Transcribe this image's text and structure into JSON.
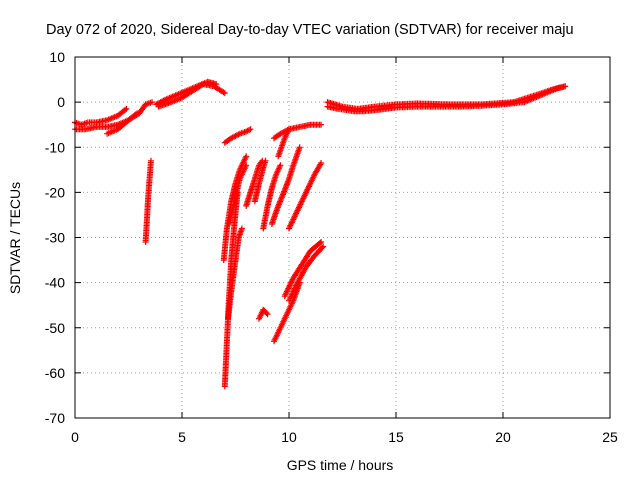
{
  "chart_data": {
    "type": "scatter",
    "title": "Day 072 of 2020, Sidereal Day-to-day VTEC variation (SDTVAR) for receiver maju",
    "xlabel": "GPS time / hours",
    "ylabel": "SDTVAR / TECUs",
    "xlim": [
      0,
      25
    ],
    "ylim": [
      -70,
      10
    ],
    "xticks": [
      0,
      5,
      10,
      15,
      20,
      25
    ],
    "yticks": [
      10,
      0,
      -10,
      -20,
      -30,
      -40,
      -50,
      -60,
      -70
    ],
    "grid": true,
    "marker": "+",
    "series": [
      {
        "name": "SDTVAR",
        "color": "#ff0000",
        "segments": [
          [
            [
              0.0,
              -4.5
            ],
            [
              0.3,
              -5.0
            ],
            [
              0.6,
              -4.5
            ],
            [
              1.0,
              -4.5
            ],
            [
              1.5,
              -4.0
            ],
            [
              2.0,
              -3.0
            ],
            [
              2.4,
              -1.5
            ]
          ],
          [
            [
              0.0,
              -6.0
            ],
            [
              0.5,
              -6.0
            ],
            [
              1.0,
              -5.5
            ],
            [
              1.5,
              -5.5
            ],
            [
              2.0,
              -5.0
            ],
            [
              2.5,
              -4.0
            ],
            [
              2.9,
              -2.5
            ]
          ],
          [
            [
              1.5,
              -7.0
            ],
            [
              2.0,
              -6.0
            ],
            [
              2.5,
              -4.0
            ],
            [
              3.0,
              -2.5
            ],
            [
              3.3,
              -0.5
            ],
            [
              3.6,
              0.0
            ]
          ],
          [
            [
              3.8,
              -0.5
            ],
            [
              4.2,
              0.5
            ],
            [
              4.7,
              1.5
            ],
            [
              5.2,
              2.5
            ],
            [
              5.7,
              3.5
            ],
            [
              6.2,
              4.5
            ],
            [
              6.6,
              4.0
            ]
          ],
          [
            [
              3.9,
              -1.0
            ],
            [
              4.5,
              0.0
            ],
            [
              5.0,
              1.0
            ],
            [
              5.5,
              2.5
            ],
            [
              6.0,
              4.0
            ],
            [
              6.5,
              3.5
            ],
            [
              7.0,
              2.0
            ]
          ],
          [
            [
              3.3,
              -31.0
            ],
            [
              3.35,
              -27.0
            ],
            [
              3.42,
              -21.0
            ],
            [
              3.5,
              -16.0
            ],
            [
              3.55,
              -13.0
            ]
          ],
          [
            [
              7.0,
              -9.0
            ],
            [
              7.3,
              -8.0
            ],
            [
              7.7,
              -7.0
            ],
            [
              8.0,
              -6.5
            ],
            [
              8.2,
              -6.0
            ]
          ],
          [
            [
              7.0,
              -63.0
            ],
            [
              7.08,
              -55.0
            ],
            [
              7.18,
              -45.0
            ],
            [
              7.3,
              -35.0
            ],
            [
              7.45,
              -27.0
            ],
            [
              7.6,
              -20.0
            ]
          ],
          [
            [
              7.15,
              -48.0
            ],
            [
              7.3,
              -42.0
            ],
            [
              7.5,
              -35.0
            ],
            [
              7.65,
              -30.0
            ],
            [
              7.8,
              -28.0
            ]
          ],
          [
            [
              6.95,
              -35.0
            ],
            [
              7.1,
              -28.0
            ],
            [
              7.3,
              -22.0
            ],
            [
              7.5,
              -18.0
            ],
            [
              7.7,
              -15.0
            ],
            [
              8.0,
              -12.0
            ]
          ],
          [
            [
              7.2,
              -27.0
            ],
            [
              7.45,
              -22.0
            ],
            [
              7.7,
              -17.0
            ],
            [
              8.0,
              -14.0
            ]
          ],
          [
            [
              8.0,
              -23.0
            ],
            [
              8.2,
              -20.0
            ],
            [
              8.4,
              -17.0
            ],
            [
              8.6,
              -14.0
            ],
            [
              8.75,
              -13.0
            ]
          ],
          [
            [
              8.4,
              -22.0
            ],
            [
              8.6,
              -18.0
            ],
            [
              8.8,
              -14.5
            ],
            [
              8.9,
              -13.0
            ]
          ],
          [
            [
              8.8,
              -28.0
            ],
            [
              9.0,
              -23.0
            ],
            [
              9.2,
              -19.0
            ],
            [
              9.4,
              -16.0
            ],
            [
              9.6,
              -14.0
            ]
          ],
          [
            [
              9.2,
              -27.0
            ],
            [
              9.5,
              -23.0
            ],
            [
              9.8,
              -19.5
            ],
            [
              10.0,
              -17.0
            ],
            [
              10.2,
              -14.0
            ],
            [
              10.5,
              -10.0
            ]
          ],
          [
            [
              8.6,
              -48.0
            ],
            [
              8.8,
              -46.0
            ],
            [
              9.0,
              -47.0
            ]
          ],
          [
            [
              9.3,
              -8.0
            ],
            [
              9.6,
              -7.0
            ],
            [
              10.0,
              -6.0
            ],
            [
              10.5,
              -5.5
            ],
            [
              11.0,
              -5.0
            ],
            [
              11.5,
              -5.0
            ]
          ],
          [
            [
              9.5,
              -12.0
            ],
            [
              9.8,
              -8.0
            ],
            [
              10.0,
              -6.0
            ]
          ],
          [
            [
              10.0,
              -28.0
            ],
            [
              10.4,
              -24.0
            ],
            [
              10.8,
              -20.0
            ],
            [
              11.2,
              -16.0
            ],
            [
              11.5,
              -13.5
            ]
          ],
          [
            [
              9.8,
              -43.0
            ],
            [
              10.2,
              -39.0
            ],
            [
              10.6,
              -36.0
            ],
            [
              11.0,
              -33.0
            ],
            [
              11.5,
              -31.0
            ]
          ],
          [
            [
              10.0,
              -44.0
            ],
            [
              10.4,
              -40.0
            ],
            [
              10.8,
              -36.5
            ],
            [
              11.2,
              -34.0
            ],
            [
              11.6,
              -32.0
            ]
          ],
          [
            [
              9.3,
              -53.0
            ],
            [
              9.6,
              -50.0
            ],
            [
              9.9,
              -47.0
            ],
            [
              10.2,
              -44.0
            ],
            [
              10.5,
              -40.0
            ]
          ],
          [
            [
              11.8,
              -1.0
            ],
            [
              12.3,
              -1.5
            ],
            [
              13.0,
              -2.0
            ],
            [
              13.5,
              -2.0
            ],
            [
              14.0,
              -1.8
            ],
            [
              14.5,
              -1.5
            ],
            [
              15.0,
              -1.2
            ],
            [
              16.0,
              -1.0
            ],
            [
              17.0,
              -1.0
            ],
            [
              18.0,
              -1.0
            ],
            [
              19.0,
              -0.8
            ],
            [
              20.0,
              -0.5
            ],
            [
              21.0,
              0.0
            ],
            [
              21.5,
              1.0
            ],
            [
              22.0,
              2.0
            ],
            [
              22.5,
              3.0
            ],
            [
              22.9,
              3.5
            ]
          ],
          [
            [
              11.8,
              0.0
            ],
            [
              12.5,
              -1.0
            ],
            [
              13.2,
              -1.5
            ],
            [
              14.0,
              -1.0
            ],
            [
              15.0,
              -0.5
            ],
            [
              16.0,
              -0.3
            ],
            [
              17.5,
              -0.5
            ],
            [
              19.0,
              -0.5
            ],
            [
              20.5,
              0.0
            ],
            [
              21.5,
              1.5
            ],
            [
              22.3,
              2.8
            ],
            [
              22.9,
              3.5
            ]
          ]
        ]
      }
    ]
  }
}
